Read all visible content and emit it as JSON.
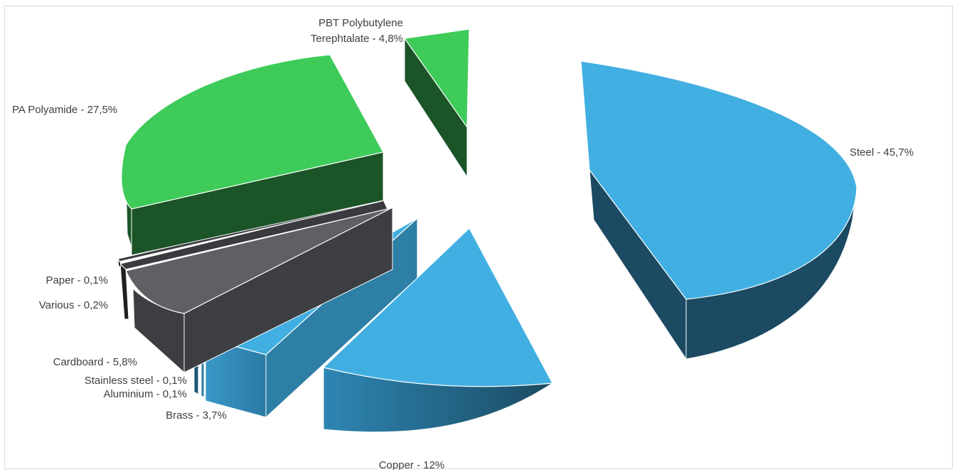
{
  "chart_data": {
    "type": "pie",
    "title": "",
    "style": "exploded-3d",
    "slices": [
      {
        "label": "Steel - 45,7%",
        "name": "Steel",
        "value": 45.7,
        "color": "#41afe1",
        "side_color": "#1b4a62"
      },
      {
        "label": "Copper - 12%",
        "name": "Copper",
        "value": 12,
        "color": "#41afe1",
        "side_color": "#23617d"
      },
      {
        "label": "Brass - 3,7%",
        "name": "Brass",
        "value": 3.7,
        "color": "#41afe1",
        "side_color": "#2d7fa6"
      },
      {
        "label": "Aluminium - 0,1%",
        "name": "Aluminium",
        "value": 0.1,
        "color": "#41afe1",
        "side_color": "#2d7fa6"
      },
      {
        "label": "Stainless steel - 0,1%",
        "name": "Stainless steel",
        "value": 0.1,
        "color": "#2e7fa8",
        "side_color": "#1d5573"
      },
      {
        "label": "Cardboard - 5,8%",
        "name": "Cardboard",
        "value": 5.8,
        "color": "#5f6064",
        "side_color": "#3d3e42"
      },
      {
        "label": "Various - 0,2%",
        "name": "Various",
        "value": 0.2,
        "color": "#3a3b3f",
        "side_color": "#1f2022"
      },
      {
        "label": "Paper - 0,1%",
        "name": "Paper",
        "value": 0.1,
        "color": "#3a3b3f",
        "side_color": "#1f2022"
      },
      {
        "label": "PA Polyamide - 27,5%",
        "name": "PA Polyamide",
        "value": 27.5,
        "color": "#3ecb5a",
        "side_color": "#1a5427"
      },
      {
        "label": "PBT Polybutylene Terephtalate - 4,8%",
        "name": "PBT Polybutylene Terephtalate",
        "value": 4.8,
        "label_lines": [
          "PBT Polybutylene",
          "Terephtalate - 4,8%"
        ],
        "color": "#3ecb5a",
        "side_color": "#1a5427"
      }
    ]
  }
}
